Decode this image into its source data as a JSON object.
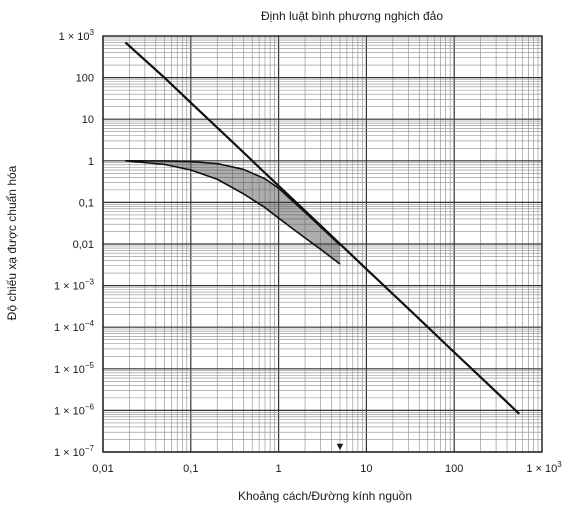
{
  "chart_data": {
    "type": "line",
    "title": "Định luật bình phương nghịch đảo",
    "xlabel": "Khoảng cách/Đường kính nguồn",
    "ylabel": "Độ chiếu xạ được chuẩn hóa",
    "x_scale": "log",
    "y_scale": "log",
    "xlim": [
      0.01,
      1000
    ],
    "ylim": [
      1e-07,
      1000
    ],
    "grid": true,
    "x_ticks": [
      {
        "value": 0.01,
        "mantissa": "0,01",
        "exp": ""
      },
      {
        "value": 0.1,
        "mantissa": "0,1",
        "exp": ""
      },
      {
        "value": 1,
        "mantissa": "1",
        "exp": ""
      },
      {
        "value": 10,
        "mantissa": "10",
        "exp": ""
      },
      {
        "value": 100,
        "mantissa": "100",
        "exp": ""
      },
      {
        "value": 1000,
        "mantissa": "1 × 10",
        "exp": "3"
      }
    ],
    "y_ticks": [
      {
        "value": 1000,
        "mantissa": "1 × 10",
        "exp": "3"
      },
      {
        "value": 100,
        "mantissa": "100",
        "exp": ""
      },
      {
        "value": 10,
        "mantissa": "10",
        "exp": ""
      },
      {
        "value": 1,
        "mantissa": "1",
        "exp": ""
      },
      {
        "value": 0.1,
        "mantissa": "0,1",
        "exp": ""
      },
      {
        "value": 0.01,
        "mantissa": "0,01",
        "exp": ""
      },
      {
        "value": 0.001,
        "mantissa": "1 × 10",
        "exp": "−3"
      },
      {
        "value": 0.0001,
        "mantissa": "1 × 10",
        "exp": "−4"
      },
      {
        "value": 1e-05,
        "mantissa": "1 × 10",
        "exp": "−5"
      },
      {
        "value": 1e-06,
        "mantissa": "1 × 10",
        "exp": "−6"
      },
      {
        "value": 1e-07,
        "mantissa": "1 × 10",
        "exp": "−7"
      }
    ],
    "series": [
      {
        "style": "solid",
        "x": [
          0.018,
          0.05,
          0.1,
          0.3,
          1,
          3,
          10,
          30,
          100,
          300,
          550
        ],
        "y": [
          700,
          100,
          25,
          2.8,
          0.25,
          0.028,
          0.0025,
          0.00028,
          2.5e-05,
          2.8e-06,
          8.3e-07
        ]
      },
      {
        "style": "solid",
        "x": [
          0.018,
          0.05,
          0.1,
          0.2,
          0.4,
          0.7,
          1,
          1.5,
          2,
          3,
          5
        ],
        "y": [
          1,
          0.99,
          0.96,
          0.86,
          0.62,
          0.37,
          0.22,
          0.1,
          0.058,
          0.026,
          0.0094
        ]
      },
      {
        "style": "solid",
        "x": [
          0.018,
          0.05,
          0.1,
          0.2,
          0.4,
          0.7,
          1,
          1.5,
          2,
          3,
          5
        ],
        "y": [
          1,
          0.82,
          0.6,
          0.36,
          0.16,
          0.075,
          0.042,
          0.022,
          0.014,
          0.0075,
          0.0033
        ]
      }
    ],
    "marker": {
      "x": 5,
      "symbol": "▼"
    }
  }
}
